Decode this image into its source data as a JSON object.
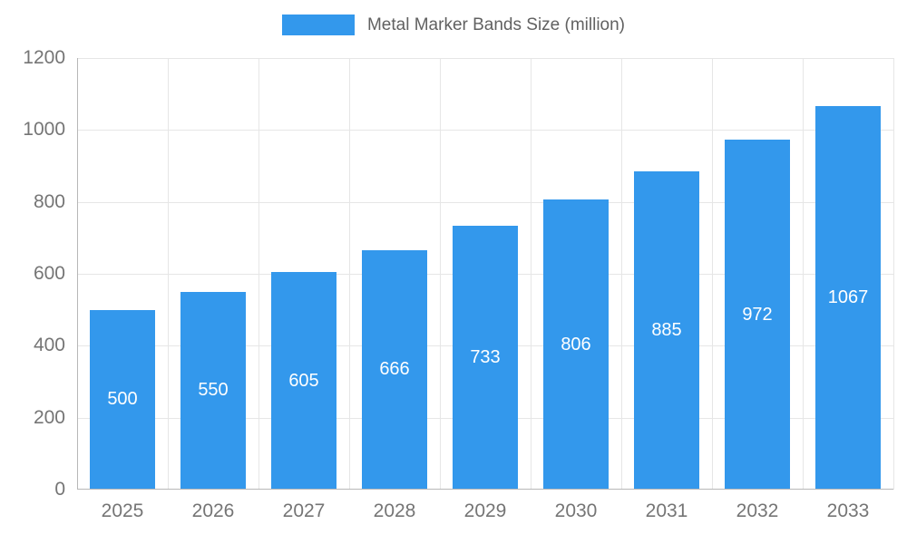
{
  "legend": {
    "label": "Metal Marker Bands Size (million)"
  },
  "chart_data": {
    "type": "bar",
    "title": "Metal Marker Bands Size (million)",
    "categories": [
      "2025",
      "2026",
      "2027",
      "2028",
      "2029",
      "2030",
      "2031",
      "2032",
      "2033"
    ],
    "values": [
      500,
      550,
      605,
      666,
      733,
      806,
      885,
      972,
      1067
    ],
    "xlabel": "",
    "ylabel": "",
    "ylim": [
      0,
      1200
    ],
    "ytick_interval": 200,
    "yticks": [
      0,
      200,
      400,
      600,
      800,
      1000,
      1200
    ],
    "grid": true,
    "legend_position": "top",
    "bar_color": "#3398ec",
    "value_label_color": "#ffffff",
    "axis_text_color": "#757575"
  }
}
